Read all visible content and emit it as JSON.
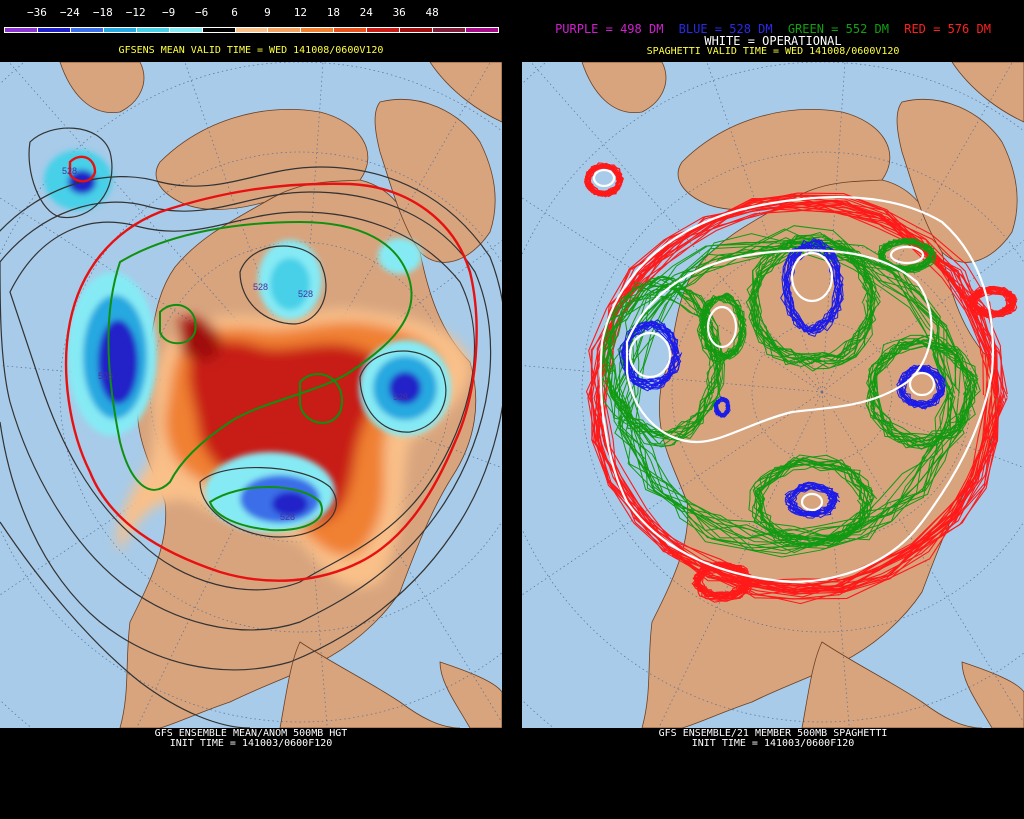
{
  "left_panel": {
    "colorbar": {
      "labels": [
        "−36",
        "−24",
        "−18",
        "−12",
        "−9",
        "−6",
        "6",
        "9",
        "12",
        "18",
        "24",
        "36",
        "48"
      ],
      "colors": [
        "#8a35d0",
        "#2020c8",
        "#3a6ee8",
        "#25a8e0",
        "#46d0e8",
        "#86eaf4",
        "#000000",
        "#f9c089",
        "#f3a25f",
        "#f08030",
        "#e8501a",
        "#c81b14",
        "#a00f0f",
        "#7e1c3a",
        "#a50d88"
      ]
    },
    "title": "GFSENS MEAN VALID TIME = WED 141008/0600V120",
    "contour_labels": [
      "528",
      "528",
      "528",
      "528",
      "528",
      "528"
    ],
    "footer_line1": "GFS ENSEMBLE MEAN/ANOM 500MB HGT",
    "footer_line2": "INIT TIME = 141003/0600F120"
  },
  "right_panel": {
    "legend": [
      {
        "text": "PURPLE = 498 DM",
        "color": "#d020d0"
      },
      {
        "text": "BLUE = 528 DM",
        "color": "#2a2ae8"
      },
      {
        "text": "GREEN = 552 DM",
        "color": "#10a010"
      },
      {
        "text": "RED = 576 DM",
        "color": "#ff2020"
      }
    ],
    "operational": "WHITE = OPERATIONAL",
    "title": "SPAGHETTI VALID TIME = WED 141008/0600V120",
    "footer_line1": "GFS ENSEMBLE/21 MEMBER 500MB SPAGHETTI",
    "footer_line2": "INIT TIME = 141003/0600F120"
  },
  "colors": {
    "ocean": "#a7cbe9",
    "land": "#d7a47e",
    "title_yellow": "#ffff40",
    "grid_blue": "#5a6e95",
    "border_brown": "#8a4d2a"
  }
}
